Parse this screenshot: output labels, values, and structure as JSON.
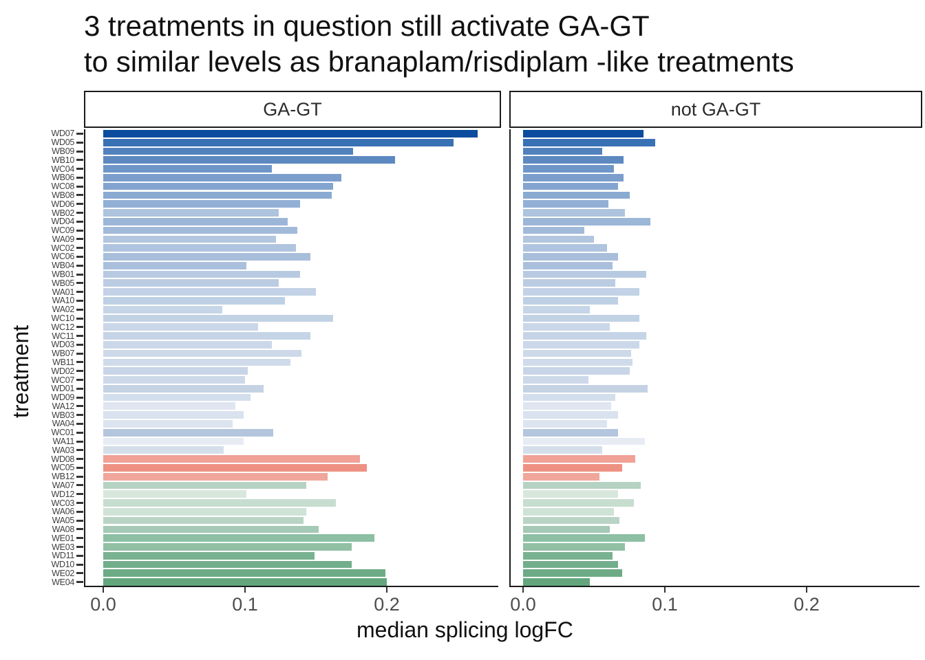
{
  "title": {
    "line1": "3 treatments in question still activate GA-GT",
    "line2": "to similar levels as branaplam/risdiplam -like treatments"
  },
  "facets": [
    {
      "label": "GA-GT"
    },
    {
      "label": "not GA-GT"
    }
  ],
  "axes": {
    "x_title": "median splicing logFC",
    "y_title": "treatment",
    "x_tick_labels": [
      "0.0",
      "0.1",
      "0.2"
    ]
  },
  "chart_data": {
    "type": "bar",
    "orientation": "horizontal",
    "facet_titles": [
      "GA-GT",
      "not GA-GT"
    ],
    "title": "3 treatments in question still activate GA-GT to similar levels as branaplam/risdiplam -like treatments",
    "xlabel": "median splicing logFC",
    "ylabel": "treatment",
    "xlim": [
      0,
      0.28
    ],
    "x_ticks": [
      0.0,
      0.1,
      0.2
    ],
    "grid": false,
    "legend": "none",
    "categories": [
      "WD07",
      "WD05",
      "WB09",
      "WB10",
      "WC04",
      "WB06",
      "WC08",
      "WB08",
      "WD06",
      "WB02",
      "WD04",
      "WC09",
      "WA09",
      "WC02",
      "WC06",
      "WB04",
      "WB01",
      "WB05",
      "WA01",
      "WA10",
      "WA02",
      "WC10",
      "WC12",
      "WC11",
      "WD03",
      "WB07",
      "WB11",
      "WD02",
      "WC07",
      "WD01",
      "WD09",
      "WA12",
      "WB03",
      "WA04",
      "WC01",
      "WA11",
      "WA03",
      "WD08",
      "WC05",
      "WB12",
      "WA07",
      "WD12",
      "WC03",
      "WA06",
      "WA05",
      "WA08",
      "WE01",
      "WE03",
      "WD11",
      "WD10",
      "WE02",
      "WE04"
    ],
    "series": [
      {
        "name": "GA-GT",
        "values": [
          0.264,
          0.247,
          0.176,
          0.206,
          0.119,
          0.168,
          0.162,
          0.161,
          0.139,
          0.124,
          0.13,
          0.137,
          0.122,
          0.136,
          0.146,
          0.101,
          0.139,
          0.124,
          0.15,
          0.128,
          0.084,
          0.162,
          0.109,
          0.146,
          0.119,
          0.14,
          0.132,
          0.102,
          0.1,
          0.113,
          0.104,
          0.093,
          0.099,
          0.091,
          0.12,
          0.099,
          0.085,
          0.181,
          0.186,
          0.158,
          0.143,
          0.101,
          0.164,
          0.143,
          0.141,
          0.152,
          0.191,
          0.175,
          0.149,
          0.175,
          0.199,
          0.2
        ]
      },
      {
        "name": "not GA-GT",
        "values": [
          0.085,
          0.093,
          0.056,
          0.071,
          0.064,
          0.071,
          0.067,
          0.075,
          0.06,
          0.072,
          0.09,
          0.043,
          0.05,
          0.059,
          0.067,
          0.063,
          0.087,
          0.065,
          0.082,
          0.067,
          0.047,
          0.082,
          0.061,
          0.087,
          0.082,
          0.076,
          0.077,
          0.075,
          0.046,
          0.088,
          0.065,
          0.062,
          0.067,
          0.059,
          0.067,
          0.086,
          0.056,
          0.079,
          0.07,
          0.054,
          0.083,
          0.067,
          0.078,
          0.064,
          0.068,
          0.061,
          0.086,
          0.072,
          0.063,
          0.067,
          0.07,
          0.047
        ]
      }
    ],
    "bar_colors": [
      "#0b4c9e",
      "#3971b5",
      "#5282bd",
      "#5d89c1",
      "#6f96c9",
      "#7b9ecd",
      "#83a4d0",
      "#8aaad2",
      "#92afd5",
      "#aec3dd",
      "#9cb6d8",
      "#a2bada",
      "#b3c6df",
      "#afc4de",
      "#a8bedb",
      "#aabfdc",
      "#b8cae1",
      "#bbcce2",
      "#c3d2e6",
      "#bed0e4",
      "#c6d5e7",
      "#c2d2e5",
      "#c9d7e8",
      "#c5d4e6",
      "#cbd8e9",
      "#cdd9e9",
      "#cfdbea",
      "#c8d5e7",
      "#cdd9e9",
      "#c4d2e4",
      "#d3deec",
      "#dfe6f1",
      "#d9e2ee",
      "#dce4f0",
      "#b4c6dd",
      "#e7ecf4",
      "#d5dfeb",
      "#f1a196",
      "#ee9182",
      "#f0a69a",
      "#b6d2c2",
      "#d8e7dc",
      "#c7ddcf",
      "#cfe2d6",
      "#b9d4c4",
      "#a4c9b4",
      "#8cbfa3",
      "#91c0a4",
      "#79b290",
      "#72ae8b",
      "#6cab85",
      "#63a67d"
    ],
    "group_colors": {
      "blue_dark": "#0b4c9e",
      "blue_light": "#e7ecf4",
      "salmon": "#ee9182",
      "green_light": "#d8e7dc",
      "green_dark": "#63a67d"
    }
  }
}
